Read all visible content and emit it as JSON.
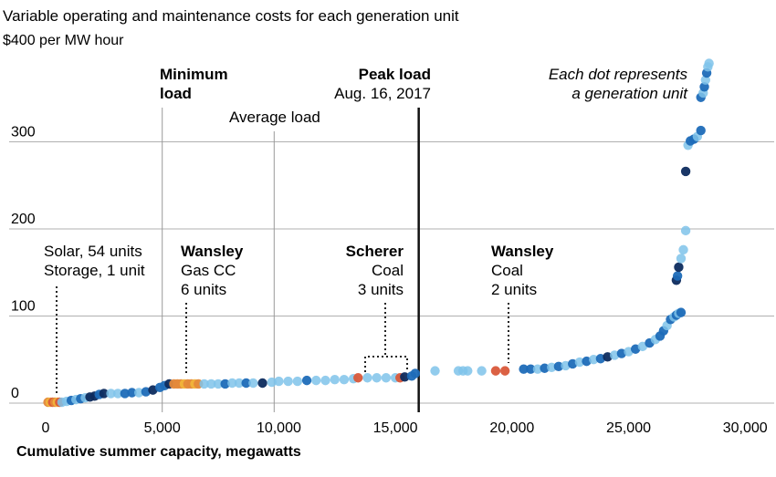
{
  "chart_data": {
    "type": "scatter",
    "title": "Variable operating and maintenance costs for each generation unit",
    "subtitle": "$400 per MW hour",
    "xlabel": "Cumulative summer capacity, megawatts",
    "ylabel": "",
    "xlim": [
      0,
      30500
    ],
    "ylim": [
      0,
      400
    ],
    "x_ticks": [
      {
        "value": 0,
        "label": "0"
      },
      {
        "value": 5000,
        "label": "5,000"
      },
      {
        "value": 10000,
        "label": "10,000"
      },
      {
        "value": 15000,
        "label": "15,000"
      },
      {
        "value": 20000,
        "label": "20,000"
      },
      {
        "value": 25000,
        "label": "25,000"
      },
      {
        "value": 30000,
        "label": "30,000"
      }
    ],
    "y_ticks": [
      {
        "value": 0,
        "label": "0"
      },
      {
        "value": 100,
        "label": "100"
      },
      {
        "value": 200,
        "label": "200"
      },
      {
        "value": 300,
        "label": "300"
      }
    ],
    "grid": "horizontal",
    "colors": {
      "dark_navy": "#0d2b5e",
      "mid_blue": "#1e6bb8",
      "light_blue": "#7fc3ea",
      "red": "#d9583a",
      "orange": "#e4893a",
      "yellow": "#f1b43a",
      "gridline": "#b0b0b0",
      "peak_line": "#111111"
    },
    "reference_lines": [
      {
        "name": "minimum-load",
        "x": 5000,
        "label_line1": "Minimum",
        "label_line2": "load"
      },
      {
        "name": "average-load",
        "x": 9800,
        "label_line1": "Average load"
      },
      {
        "name": "peak-load",
        "x": 16000,
        "label_line1": "Peak load",
        "label_line2": "Aug. 16, 2017"
      }
    ],
    "annotations": {
      "dot_note_line1": "Each dot represents",
      "dot_note_line2": "a generation unit",
      "solar_line1": "Solar, 54 units",
      "solar_line2": "Storage, 1 unit",
      "wansley_gas_name": "Wansley",
      "wansley_gas_type": "Gas CC",
      "wansley_gas_units": "6 units",
      "scherer_name": "Scherer",
      "scherer_type": "Coal",
      "scherer_units": "3 units",
      "wansley_coal_name": "Wansley",
      "wansley_coal_type": "Coal",
      "wansley_coal_units": "2 units"
    },
    "points": [
      {
        "x": 100,
        "y": 0,
        "c": "orange"
      },
      {
        "x": 200,
        "y": 0,
        "c": "yellow"
      },
      {
        "x": 300,
        "y": 0,
        "c": "red"
      },
      {
        "x": 400,
        "y": 0,
        "c": "orange"
      },
      {
        "x": 500,
        "y": 0,
        "c": "yellow"
      },
      {
        "x": 600,
        "y": 0,
        "c": "red"
      },
      {
        "x": 700,
        "y": 0,
        "c": "light_blue"
      },
      {
        "x": 900,
        "y": 1,
        "c": "light_blue"
      },
      {
        "x": 1100,
        "y": 2,
        "c": "mid_blue"
      },
      {
        "x": 1300,
        "y": 3,
        "c": "light_blue"
      },
      {
        "x": 1500,
        "y": 4,
        "c": "mid_blue"
      },
      {
        "x": 1700,
        "y": 5,
        "c": "light_blue"
      },
      {
        "x": 1900,
        "y": 6,
        "c": "dark_navy"
      },
      {
        "x": 2100,
        "y": 7,
        "c": "dark_navy"
      },
      {
        "x": 2300,
        "y": 9,
        "c": "mid_blue"
      },
      {
        "x": 2500,
        "y": 10,
        "c": "dark_navy"
      },
      {
        "x": 2800,
        "y": 10,
        "c": "light_blue"
      },
      {
        "x": 3100,
        "y": 10,
        "c": "light_blue"
      },
      {
        "x": 3400,
        "y": 10,
        "c": "mid_blue"
      },
      {
        "x": 3700,
        "y": 11,
        "c": "mid_blue"
      },
      {
        "x": 4000,
        "y": 11,
        "c": "light_blue"
      },
      {
        "x": 4300,
        "y": 12,
        "c": "mid_blue"
      },
      {
        "x": 4600,
        "y": 14,
        "c": "dark_navy"
      },
      {
        "x": 4900,
        "y": 17,
        "c": "mid_blue"
      },
      {
        "x": 5100,
        "y": 19,
        "c": "mid_blue"
      },
      {
        "x": 5300,
        "y": 21,
        "c": "dark_navy"
      },
      {
        "x": 5500,
        "y": 21,
        "c": "orange"
      },
      {
        "x": 5650,
        "y": 21,
        "c": "orange"
      },
      {
        "x": 5800,
        "y": 21,
        "c": "orange"
      },
      {
        "x": 5950,
        "y": 21,
        "c": "yellow"
      },
      {
        "x": 6100,
        "y": 21,
        "c": "orange"
      },
      {
        "x": 6250,
        "y": 21,
        "c": "orange"
      },
      {
        "x": 6400,
        "y": 21,
        "c": "yellow"
      },
      {
        "x": 6550,
        "y": 21,
        "c": "orange"
      },
      {
        "x": 6800,
        "y": 21,
        "c": "light_blue"
      },
      {
        "x": 7100,
        "y": 21,
        "c": "light_blue"
      },
      {
        "x": 7400,
        "y": 21,
        "c": "light_blue"
      },
      {
        "x": 7700,
        "y": 21,
        "c": "mid_blue"
      },
      {
        "x": 8000,
        "y": 22,
        "c": "light_blue"
      },
      {
        "x": 8300,
        "y": 22,
        "c": "light_blue"
      },
      {
        "x": 8600,
        "y": 22,
        "c": "mid_blue"
      },
      {
        "x": 8900,
        "y": 22,
        "c": "light_blue"
      },
      {
        "x": 9300,
        "y": 22,
        "c": "dark_navy"
      },
      {
        "x": 9700,
        "y": 23,
        "c": "light_blue"
      },
      {
        "x": 10000,
        "y": 24,
        "c": "light_blue"
      },
      {
        "x": 10400,
        "y": 24,
        "c": "light_blue"
      },
      {
        "x": 10800,
        "y": 24,
        "c": "light_blue"
      },
      {
        "x": 11200,
        "y": 25,
        "c": "mid_blue"
      },
      {
        "x": 11600,
        "y": 25,
        "c": "light_blue"
      },
      {
        "x": 12000,
        "y": 25,
        "c": "light_blue"
      },
      {
        "x": 12400,
        "y": 26,
        "c": "light_blue"
      },
      {
        "x": 12800,
        "y": 26,
        "c": "light_blue"
      },
      {
        "x": 13200,
        "y": 27,
        "c": "light_blue"
      },
      {
        "x": 13400,
        "y": 28,
        "c": "red"
      },
      {
        "x": 13800,
        "y": 28,
        "c": "light_blue"
      },
      {
        "x": 14200,
        "y": 28,
        "c": "light_blue"
      },
      {
        "x": 14600,
        "y": 28,
        "c": "light_blue"
      },
      {
        "x": 15000,
        "y": 28,
        "c": "light_blue"
      },
      {
        "x": 15200,
        "y": 28,
        "c": "red"
      },
      {
        "x": 15400,
        "y": 29,
        "c": "dark_navy"
      },
      {
        "x": 15700,
        "y": 30,
        "c": "mid_blue"
      },
      {
        "x": 15850,
        "y": 33,
        "c": "mid_blue"
      },
      {
        "x": 16700,
        "y": 36,
        "c": "light_blue"
      },
      {
        "x": 17700,
        "y": 36,
        "c": "light_blue"
      },
      {
        "x": 17900,
        "y": 36,
        "c": "light_blue"
      },
      {
        "x": 18100,
        "y": 36,
        "c": "light_blue"
      },
      {
        "x": 18700,
        "y": 36,
        "c": "light_blue"
      },
      {
        "x": 19300,
        "y": 36,
        "c": "red"
      },
      {
        "x": 19700,
        "y": 36,
        "c": "red"
      },
      {
        "x": 20500,
        "y": 38,
        "c": "mid_blue"
      },
      {
        "x": 20800,
        "y": 38,
        "c": "mid_blue"
      },
      {
        "x": 21100,
        "y": 38,
        "c": "light_blue"
      },
      {
        "x": 21400,
        "y": 39,
        "c": "mid_blue"
      },
      {
        "x": 21700,
        "y": 40,
        "c": "light_blue"
      },
      {
        "x": 22000,
        "y": 41,
        "c": "mid_blue"
      },
      {
        "x": 22300,
        "y": 42,
        "c": "light_blue"
      },
      {
        "x": 22600,
        "y": 44,
        "c": "mid_blue"
      },
      {
        "x": 22900,
        "y": 46,
        "c": "light_blue"
      },
      {
        "x": 23200,
        "y": 47,
        "c": "mid_blue"
      },
      {
        "x": 23500,
        "y": 49,
        "c": "light_blue"
      },
      {
        "x": 23800,
        "y": 50,
        "c": "mid_blue"
      },
      {
        "x": 24100,
        "y": 52,
        "c": "dark_navy"
      },
      {
        "x": 24400,
        "y": 54,
        "c": "light_blue"
      },
      {
        "x": 24700,
        "y": 56,
        "c": "mid_blue"
      },
      {
        "x": 25000,
        "y": 58,
        "c": "light_blue"
      },
      {
        "x": 25300,
        "y": 61,
        "c": "mid_blue"
      },
      {
        "x": 25600,
        "y": 64,
        "c": "light_blue"
      },
      {
        "x": 25900,
        "y": 68,
        "c": "mid_blue"
      },
      {
        "x": 26150,
        "y": 72,
        "c": "light_blue"
      },
      {
        "x": 26350,
        "y": 76,
        "c": "mid_blue"
      },
      {
        "x": 26500,
        "y": 82,
        "c": "mid_blue"
      },
      {
        "x": 26650,
        "y": 88,
        "c": "light_blue"
      },
      {
        "x": 26800,
        "y": 95,
        "c": "mid_blue"
      },
      {
        "x": 26950,
        "y": 98,
        "c": "light_blue"
      },
      {
        "x": 27050,
        "y": 100,
        "c": "mid_blue"
      },
      {
        "x": 27150,
        "y": 102,
        "c": "light_blue"
      },
      {
        "x": 27250,
        "y": 103,
        "c": "mid_blue"
      },
      {
        "x": 27050,
        "y": 140,
        "c": "dark_navy"
      },
      {
        "x": 27100,
        "y": 145,
        "c": "mid_blue"
      },
      {
        "x": 27150,
        "y": 155,
        "c": "dark_navy"
      },
      {
        "x": 27250,
        "y": 165,
        "c": "light_blue"
      },
      {
        "x": 27350,
        "y": 175,
        "c": "light_blue"
      },
      {
        "x": 27450,
        "y": 197,
        "c": "light_blue"
      },
      {
        "x": 27450,
        "y": 265,
        "c": "dark_navy"
      },
      {
        "x": 27550,
        "y": 295,
        "c": "light_blue"
      },
      {
        "x": 27650,
        "y": 300,
        "c": "mid_blue"
      },
      {
        "x": 27800,
        "y": 302,
        "c": "mid_blue"
      },
      {
        "x": 27950,
        "y": 305,
        "c": "light_blue"
      },
      {
        "x": 28100,
        "y": 312,
        "c": "mid_blue"
      },
      {
        "x": 28100,
        "y": 350,
        "c": "mid_blue"
      },
      {
        "x": 28200,
        "y": 355,
        "c": "light_blue"
      },
      {
        "x": 28250,
        "y": 362,
        "c": "mid_blue"
      },
      {
        "x": 28300,
        "y": 370,
        "c": "light_blue"
      },
      {
        "x": 28350,
        "y": 378,
        "c": "mid_blue"
      },
      {
        "x": 28400,
        "y": 385,
        "c": "light_blue"
      },
      {
        "x": 28450,
        "y": 389,
        "c": "light_blue"
      }
    ]
  }
}
